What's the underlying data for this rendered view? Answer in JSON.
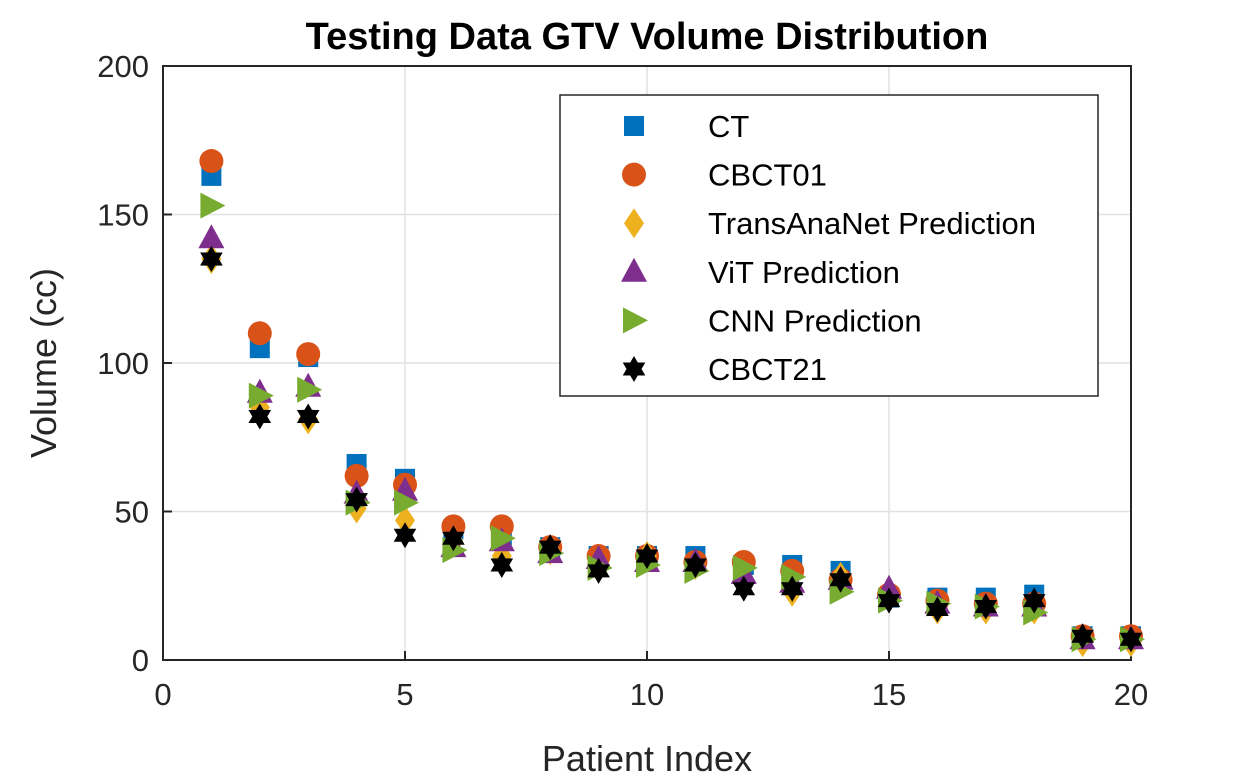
{
  "chart_data": {
    "type": "scatter",
    "title": "Testing Data GTV Volume Distribution",
    "xlabel": "Patient Index",
    "ylabel": "Volume (cc)",
    "xlim": [
      0,
      20
    ],
    "ylim": [
      0,
      200
    ],
    "xticks": [
      0,
      5,
      10,
      15,
      20
    ],
    "yticks": [
      0,
      50,
      100,
      150,
      200
    ],
    "grid": true,
    "legend_position": "top-right",
    "x": [
      1,
      2,
      3,
      4,
      5,
      6,
      7,
      8,
      9,
      10,
      11,
      12,
      13,
      14,
      15,
      16,
      17,
      18,
      19,
      20
    ],
    "series": [
      {
        "name": "CT",
        "marker": "square",
        "color": "#0072BD",
        "values": [
          163,
          105,
          102,
          66,
          61,
          44,
          42,
          38,
          35,
          35,
          35,
          32,
          32,
          30,
          21,
          21,
          21,
          22,
          8,
          8
        ]
      },
      {
        "name": "CBCT01",
        "marker": "circle",
        "color": "#D95319",
        "values": [
          168,
          110,
          103,
          62,
          59,
          45,
          45,
          38,
          35,
          35,
          33,
          33,
          30,
          27,
          22,
          20,
          19,
          19,
          8,
          8
        ]
      },
      {
        "name": "TransAnaNet Prediction",
        "marker": "diamond",
        "color": "#EDB120",
        "values": [
          135,
          85,
          81,
          51,
          47,
          40,
          35,
          37,
          31,
          35,
          32,
          26,
          23,
          28,
          21,
          17,
          17,
          17,
          6,
          6
        ]
      },
      {
        "name": "ViT Prediction",
        "marker": "triangle-up",
        "color": "#7E2F8E",
        "values": [
          142,
          90,
          92,
          56,
          57,
          38,
          40,
          36,
          34,
          33,
          33,
          29,
          26,
          27,
          24,
          19,
          18,
          18,
          7,
          7
        ]
      },
      {
        "name": "CNN Prediction",
        "marker": "triangle-right",
        "color": "#77AC30",
        "values": [
          153,
          89,
          91,
          53,
          53,
          37,
          41,
          36,
          31,
          32,
          30,
          31,
          28,
          23,
          20,
          19,
          18,
          16,
          7,
          7
        ]
      },
      {
        "name": "CBCT21",
        "marker": "hexagram",
        "color": "#000000",
        "values": [
          135,
          82,
          82,
          54,
          42,
          41,
          32,
          38,
          30,
          35,
          32,
          24,
          24,
          27,
          20,
          17,
          18,
          20,
          8,
          7
        ]
      }
    ]
  }
}
